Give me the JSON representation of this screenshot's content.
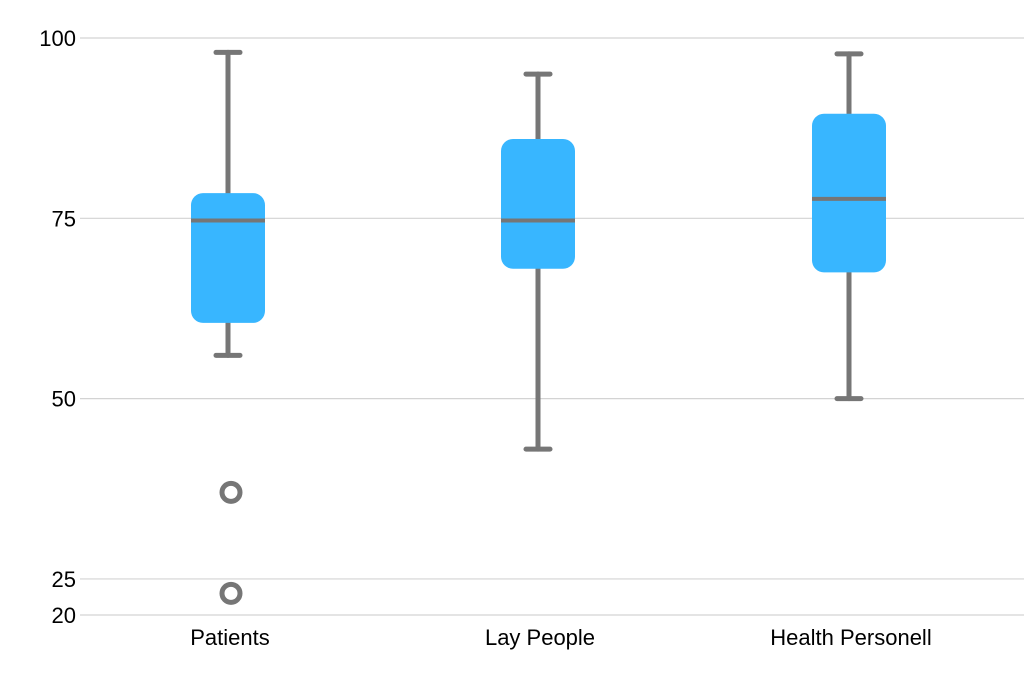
{
  "chart_data": {
    "type": "box",
    "title": "",
    "xlabel": "",
    "ylabel": "",
    "ylim": [
      20,
      100
    ],
    "yticks": [
      20,
      25,
      50,
      75,
      100
    ],
    "grid": true,
    "legend": "none",
    "categories": [
      "Patients",
      "Lay People",
      "Health Personell"
    ],
    "boxes": [
      {
        "category": "Patients",
        "whisker_low": 56,
        "q1": 60.5,
        "median": 74.7,
        "q3": 78.5,
        "whisker_high": 98,
        "outliers": [
          37,
          23
        ]
      },
      {
        "category": "Lay People",
        "whisker_low": 43,
        "q1": 68,
        "median": 74.7,
        "q3": 86,
        "whisker_high": 95,
        "outliers": []
      },
      {
        "category": "Health Personell",
        "whisker_low": 50,
        "q1": 67.5,
        "median": 77.7,
        "q3": 89.5,
        "whisker_high": 97.8,
        "outliers": []
      }
    ],
    "colors": {
      "box_fill": "#38b6ff",
      "whisker": "#767676",
      "grid": "#d3d3d3"
    }
  }
}
